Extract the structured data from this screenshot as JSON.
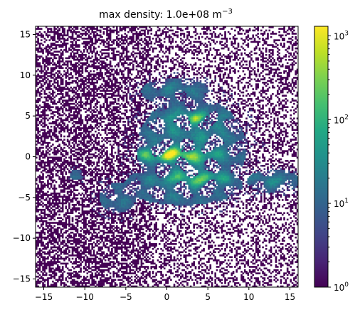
{
  "chart_data": {
    "type": "heatmap",
    "title_main": "max density: 1.0e+08 m",
    "title_exponent": "−3",
    "x_ticks": [
      "−15",
      "−10",
      "−5",
      "0",
      "5",
      "10",
      "15"
    ],
    "y_ticks": [
      "15",
      "10",
      "5",
      "0",
      "−5",
      "−10",
      "−15"
    ],
    "x_tick_values": [
      -15,
      -10,
      -5,
      0,
      5,
      10,
      15
    ],
    "y_tick_values": [
      15,
      10,
      5,
      0,
      -5,
      -10,
      -15
    ],
    "xlim": [
      -16,
      16
    ],
    "ylim": [
      -16,
      16
    ],
    "colorbar": {
      "scale": "log",
      "range": [
        1,
        1300
      ],
      "colormap": "viridis",
      "ticks": [
        {
          "base": "10",
          "exp": "0",
          "value": 1
        },
        {
          "base": "10",
          "exp": "1",
          "value": 10
        },
        {
          "base": "10",
          "exp": "2",
          "value": 100
        },
        {
          "base": "10",
          "exp": "3",
          "value": 1000
        }
      ]
    },
    "grid": false,
    "structure": {
      "background_noise": "sparse counts of 1 scattered over the whole field, denser toward the left",
      "main_blob": "dense region roughly spanning x -9 to 16, y -8 to 10",
      "filaments": "bright green/yellow filaments near y = 0 and y = 4.5, x from -3 to 5",
      "tail": "band extending right to x ≈ 16 near y = -3"
    }
  }
}
